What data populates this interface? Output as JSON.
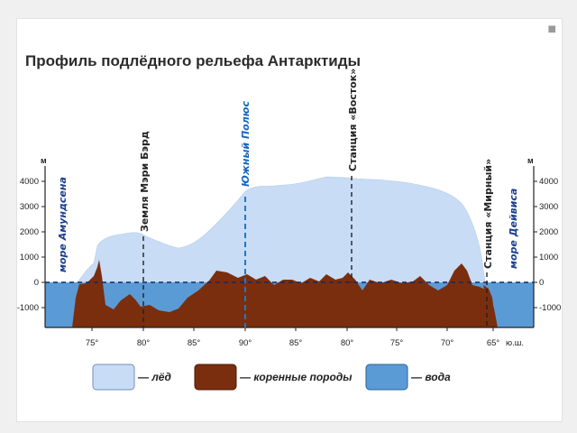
{
  "title": "Профиль подлёдного рельефа Антарктиды",
  "corner_mark": "■",
  "y_unit": "м",
  "y_ticks": [
    "4000",
    "3000",
    "2000",
    "1000",
    "0",
    "-1000"
  ],
  "x_ticks": [
    "75°",
    "80°",
    "85°",
    "90°",
    "85°",
    "80°",
    "75°",
    "70°",
    "65°"
  ],
  "x_suffix": "ю.ш.",
  "markers": {
    "mary_byrd": "Земля Мэри Бэрд",
    "south_pole": "Южный Полюс",
    "vostok": "Станция «Восток»",
    "mirny": "Станция «Мирный»"
  },
  "seas": {
    "amundsen": "море Амундсена",
    "davis": "море Дейвиса"
  },
  "legend": [
    {
      "label": "— лёд",
      "color": "#c8dcf5"
    },
    {
      "label": "— коренные породы",
      "color": "#7a2e0e"
    },
    {
      "label": "— вода",
      "color": "#5b9bd5"
    }
  ],
  "colors": {
    "ice": "#c8dcf5",
    "rock": "#7a2e0e",
    "water": "#5b9bd5",
    "pole_line": "#1e78c8"
  }
}
